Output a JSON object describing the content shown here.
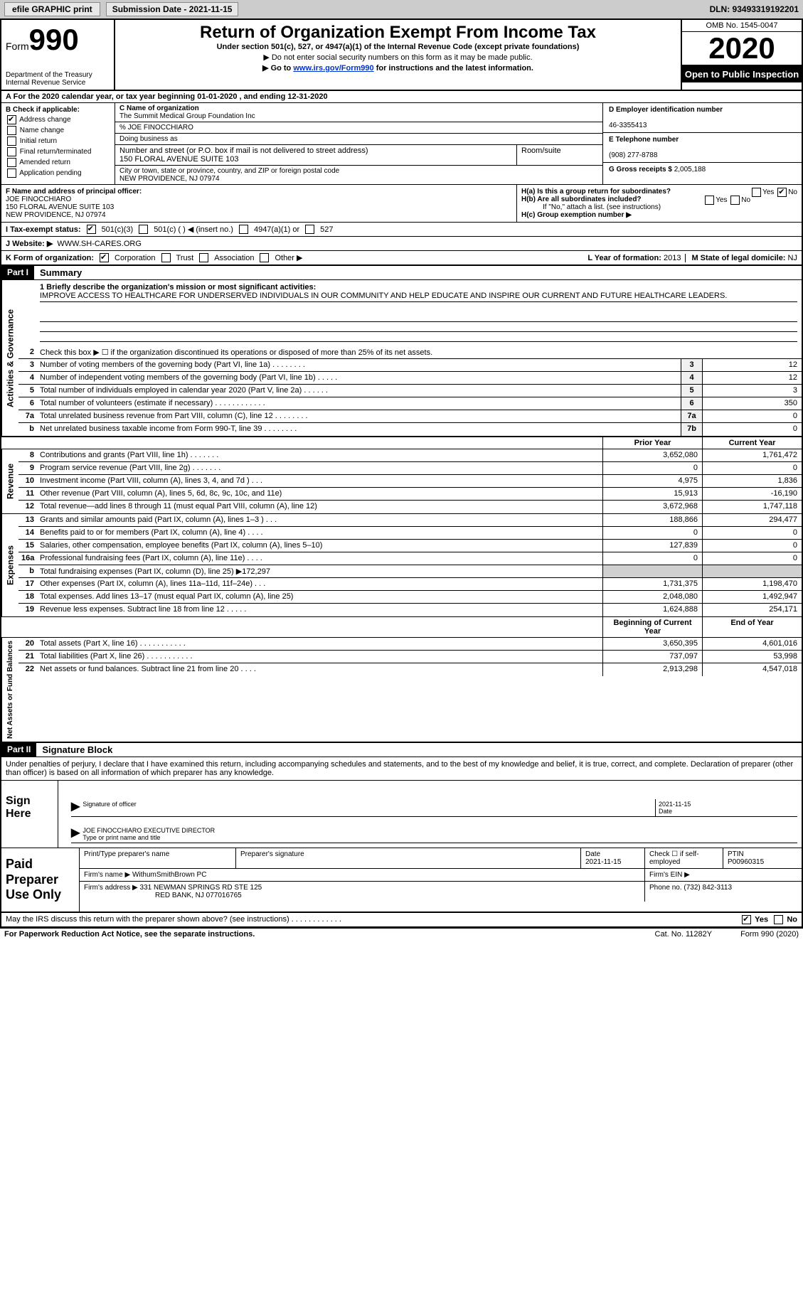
{
  "topbar": {
    "efile": "efile GRAPHIC print",
    "submission": "Submission Date - 2021-11-15",
    "dln": "DLN: 93493319192201"
  },
  "header": {
    "form_word": "Form",
    "form_num": "990",
    "dept": "Department of the Treasury\nInternal Revenue Service",
    "title": "Return of Organization Exempt From Income Tax",
    "subtitle": "Under section 501(c), 527, or 4947(a)(1) of the Internal Revenue Code (except private foundations)",
    "note1": "▶ Do not enter social security numbers on this form as it may be made public.",
    "note2_pre": "▶ Go to ",
    "note2_link": "www.irs.gov/Form990",
    "note2_post": " for instructions and the latest information.",
    "omb": "OMB No. 1545-0047",
    "year": "2020",
    "open": "Open to Public Inspection"
  },
  "rowA": "For the 2020 calendar year, or tax year beginning 01-01-2020    , and ending 12-31-2020",
  "B": {
    "label": "B Check if applicable:",
    "address": "Address change",
    "name": "Name change",
    "initial": "Initial return",
    "final": "Final return/terminated",
    "amended": "Amended return",
    "app": "Application pending"
  },
  "C": {
    "label": "C Name of organization",
    "org": "The Summit Medical Group Foundation Inc",
    "care": "% JOE FINOCCHIARO",
    "dba_lbl": "Doing business as",
    "addr_lbl": "Number and street (or P.O. box if mail is not delivered to street address)",
    "room_lbl": "Room/suite",
    "addr": "150 FLORAL AVENUE SUITE 103",
    "city_lbl": "City or town, state or province, country, and ZIP or foreign postal code",
    "city": "NEW PROVIDENCE, NJ  07974"
  },
  "D": {
    "label": "D Employer identification number",
    "val": "46-3355413"
  },
  "E": {
    "label": "E Telephone number",
    "val": "(908) 277-8788"
  },
  "G": {
    "label": "G Gross receipts $",
    "val": "2,005,188"
  },
  "F": {
    "label": "F  Name and address of principal officer:",
    "name": "JOE FINOCCHIARO",
    "addr1": "150 FLORAL AVENUE SUITE 103",
    "addr2": "NEW PROVIDENCE, NJ  07974"
  },
  "H": {
    "a": "H(a)  Is this a group return for subordinates?",
    "b": "H(b)  Are all subordinates included?",
    "bnote": "If \"No,\" attach a list. (see instructions)",
    "c": "H(c)  Group exemption number ▶",
    "yes": "Yes",
    "no": "No"
  },
  "I": {
    "label": "I    Tax-exempt status:",
    "o1": "501(c)(3)",
    "o2": "501(c) (  ) ◀ (insert no.)",
    "o3": "4947(a)(1) or",
    "o4": "527"
  },
  "J": {
    "label": "J   Website: ▶",
    "val": "WWW.SH-CARES.ORG"
  },
  "K": {
    "label": "K Form of organization:",
    "corp": "Corporation",
    "trust": "Trust",
    "assoc": "Association",
    "other": "Other ▶"
  },
  "L": {
    "label": "L Year of formation:",
    "val": "2013"
  },
  "M": {
    "label": "M State of legal domicile:",
    "val": "NJ"
  },
  "part1": {
    "tag": "Part I",
    "title": "Summary"
  },
  "mission_lbl": "1   Briefly describe the organization's mission or most significant activities:",
  "mission": "IMPROVE ACCESS TO HEALTHCARE FOR UNDERSERVED INDIVIDUALS IN OUR COMMUNITY AND HELP EDUCATE AND INSPIRE OUR CURRENT AND FUTURE HEALTHCARE LEADERS.",
  "side": {
    "gov": "Activities & Governance",
    "rev": "Revenue",
    "exp": "Expenses",
    "net": "Net Assets or Fund Balances"
  },
  "lines_gov": [
    {
      "n": "2",
      "d": "Check this box ▶ ☐  if the organization discontinued its operations or disposed of more than 25% of its net assets."
    },
    {
      "n": "3",
      "d": "Number of voting members of the governing body (Part VI, line 1a)   .    .    .    .    .    .    .    .",
      "b": "3",
      "v": "12"
    },
    {
      "n": "4",
      "d": "Number of independent voting members of the governing body (Part VI, line 1b)  .    .    .    .    .",
      "b": "4",
      "v": "12"
    },
    {
      "n": "5",
      "d": "Total number of individuals employed in calendar year 2020 (Part V, line 2a)   .    .    .    .    .    .",
      "b": "5",
      "v": "3"
    },
    {
      "n": "6",
      "d": "Total number of volunteers (estimate if necessary)   .    .    .    .    .    .    .    .    .    .    .    .",
      "b": "6",
      "v": "350"
    },
    {
      "n": "7a",
      "d": "Total unrelated business revenue from Part VIII, column (C), line 12  .    .    .    .    .    .    .    .",
      "b": "7a",
      "v": "0"
    },
    {
      "n": "b",
      "d": "Net unrelated business taxable income from Form 990-T, line 39   .    .    .    .    .    .    .    .",
      "b": "7b",
      "v": "0"
    }
  ],
  "col_prior": "Prior Year",
  "col_current": "Current Year",
  "lines_rev": [
    {
      "n": "8",
      "d": "Contributions and grants (Part VIII, line 1h)   .    .    .    .    .    .    .",
      "p": "3,652,080",
      "c": "1,761,472"
    },
    {
      "n": "9",
      "d": "Program service revenue (Part VIII, line 2g)   .    .    .    .    .    .    .",
      "p": "0",
      "c": "0"
    },
    {
      "n": "10",
      "d": "Investment income (Part VIII, column (A), lines 3, 4, and 7d )   .    .    .",
      "p": "4,975",
      "c": "1,836"
    },
    {
      "n": "11",
      "d": "Other revenue (Part VIII, column (A), lines 5, 6d, 8c, 9c, 10c, and 11e)",
      "p": "15,913",
      "c": "-16,190"
    },
    {
      "n": "12",
      "d": "Total revenue—add lines 8 through 11 (must equal Part VIII, column (A), line 12)",
      "p": "3,672,968",
      "c": "1,747,118"
    }
  ],
  "lines_exp": [
    {
      "n": "13",
      "d": "Grants and similar amounts paid (Part IX, column (A), lines 1–3 )   .    .    .",
      "p": "188,866",
      "c": "294,477"
    },
    {
      "n": "14",
      "d": "Benefits paid to or for members (Part IX, column (A), line 4)   .    .    .    .",
      "p": "0",
      "c": "0"
    },
    {
      "n": "15",
      "d": "Salaries, other compensation, employee benefits (Part IX, column (A), lines 5–10)",
      "p": "127,839",
      "c": "0"
    },
    {
      "n": "16a",
      "d": "Professional fundraising fees (Part IX, column (A), line 11e)   .    .    .    .",
      "p": "0",
      "c": "0"
    },
    {
      "n": "b",
      "d": "Total fundraising expenses (Part IX, column (D), line 25) ▶172,297",
      "shade": true
    },
    {
      "n": "17",
      "d": "Other expenses (Part IX, column (A), lines 11a–11d, 11f–24e)   .    .    .",
      "p": "1,731,375",
      "c": "1,198,470"
    },
    {
      "n": "18",
      "d": "Total expenses. Add lines 13–17 (must equal Part IX, column (A), line 25)",
      "p": "2,048,080",
      "c": "1,492,947"
    },
    {
      "n": "19",
      "d": "Revenue less expenses. Subtract line 18 from line 12   .    .    .    .    .",
      "p": "1,624,888",
      "c": "254,171"
    }
  ],
  "col_begin": "Beginning of Current Year",
  "col_end": "End of Year",
  "lines_net": [
    {
      "n": "20",
      "d": "Total assets (Part X, line 16)   .    .    .    .    .    .    .    .    .    .    .",
      "p": "3,650,395",
      "c": "4,601,016"
    },
    {
      "n": "21",
      "d": "Total liabilities (Part X, line 26)   .    .    .    .    .    .    .    .    .    .    .",
      "p": "737,097",
      "c": "53,998"
    },
    {
      "n": "22",
      "d": "Net assets or fund balances. Subtract line 21 from line 20   .    .    .    .",
      "p": "2,913,298",
      "c": "4,547,018"
    }
  ],
  "part2": {
    "tag": "Part II",
    "title": "Signature Block"
  },
  "sig_decl": "Under penalties of perjury, I declare that I have examined this return, including accompanying schedules and statements, and to the best of my knowledge and belief, it is true, correct, and complete. Declaration of preparer (other than officer) is based on all information of which preparer has any knowledge.",
  "sign": {
    "here": "Sign Here",
    "sig_lbl": "Signature of officer",
    "date_lbl": "Date",
    "date": "2021-11-15",
    "name": "JOE FINOCCHIARO  EXECUTIVE DIRECTOR",
    "name_lbl": "Type or print name and title"
  },
  "prep": {
    "label": "Paid Preparer Use Only",
    "h_name": "Print/Type preparer's name",
    "h_sig": "Preparer's signature",
    "h_date": "Date",
    "date": "2021-11-15",
    "h_chk": "Check ☐ if self-employed",
    "h_ptin": "PTIN",
    "ptin": "P00960315",
    "firm_lbl": "Firm's name      ▶",
    "firm": "WithumSmithBrown PC",
    "ein_lbl": "Firm's EIN ▶",
    "addr_lbl": "Firm's address ▶",
    "addr1": "331 NEWMAN SPRINGS RD STE 125",
    "addr2": "RED BANK, NJ  077016765",
    "phone_lbl": "Phone no.",
    "phone": "(732) 842-3113"
  },
  "discuss": "May the IRS discuss this return with the preparer shown above? (see instructions)   .    .    .    .    .    .    .    .    .    .    .    .",
  "footer": {
    "l": "For Paperwork Reduction Act Notice, see the separate instructions.",
    "m": "Cat. No. 11282Y",
    "r": "Form 990 (2020)"
  }
}
